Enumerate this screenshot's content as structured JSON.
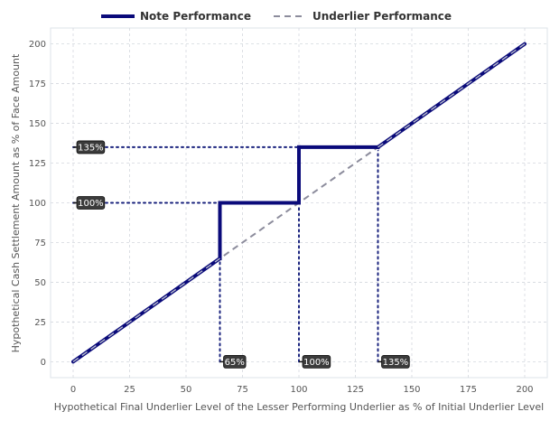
{
  "chart_data": {
    "type": "line",
    "xlabel": "Hypothetical Final Underlier Level of the Lesser Performing Underlier as % of Initial Underlier Level",
    "ylabel": "Hypothetical Cash Settlement Amount as % of Face Amount",
    "xlim": [
      -10,
      210
    ],
    "ylim": [
      -10,
      210
    ],
    "x_ticks": [
      0,
      25,
      50,
      75,
      100,
      125,
      150,
      175,
      200
    ],
    "y_ticks": [
      0,
      25,
      50,
      75,
      100,
      125,
      150,
      175,
      200
    ],
    "x_tick_labels": [
      "0",
      "25",
      "50",
      "75",
      "100",
      "125",
      "150",
      "175",
      "200"
    ],
    "y_tick_labels": [
      "0",
      "25",
      "50",
      "75",
      "100",
      "125",
      "150",
      "175",
      "200"
    ],
    "grid": true,
    "legend_position": "top-center",
    "series": [
      {
        "name": "Note Performance",
        "color": "#0a0a7a",
        "style": "solid-thick",
        "points": [
          [
            0,
            0
          ],
          [
            65,
            65
          ],
          [
            65,
            100
          ],
          [
            100,
            100
          ],
          [
            100,
            135
          ],
          [
            135,
            135
          ],
          [
            200,
            200
          ]
        ]
      },
      {
        "name": "Underlier Performance",
        "color": "#8c8c9c",
        "style": "dashed",
        "points": [
          [
            0,
            0
          ],
          [
            200,
            200
          ]
        ]
      }
    ],
    "reference_lines": [
      {
        "orientation": "horizontal",
        "y": 135,
        "x_from": 0,
        "x_to": 135
      },
      {
        "orientation": "horizontal",
        "y": 100,
        "x_from": 0,
        "x_to": 100
      },
      {
        "orientation": "vertical",
        "x": 65,
        "y_from": 0,
        "y_to": 100
      },
      {
        "orientation": "vertical",
        "x": 100,
        "y_from": 0,
        "y_to": 135
      },
      {
        "orientation": "vertical",
        "x": 135,
        "y_from": 0,
        "y_to": 135
      }
    ],
    "annotations": [
      {
        "text": "135%",
        "axis": "y",
        "value": 135
      },
      {
        "text": "100%",
        "axis": "y",
        "value": 100
      },
      {
        "text": "65%",
        "axis": "x",
        "value": 65
      },
      {
        "text": "100%",
        "axis": "x",
        "value": 100
      },
      {
        "text": "135%",
        "axis": "x",
        "value": 135
      }
    ]
  }
}
